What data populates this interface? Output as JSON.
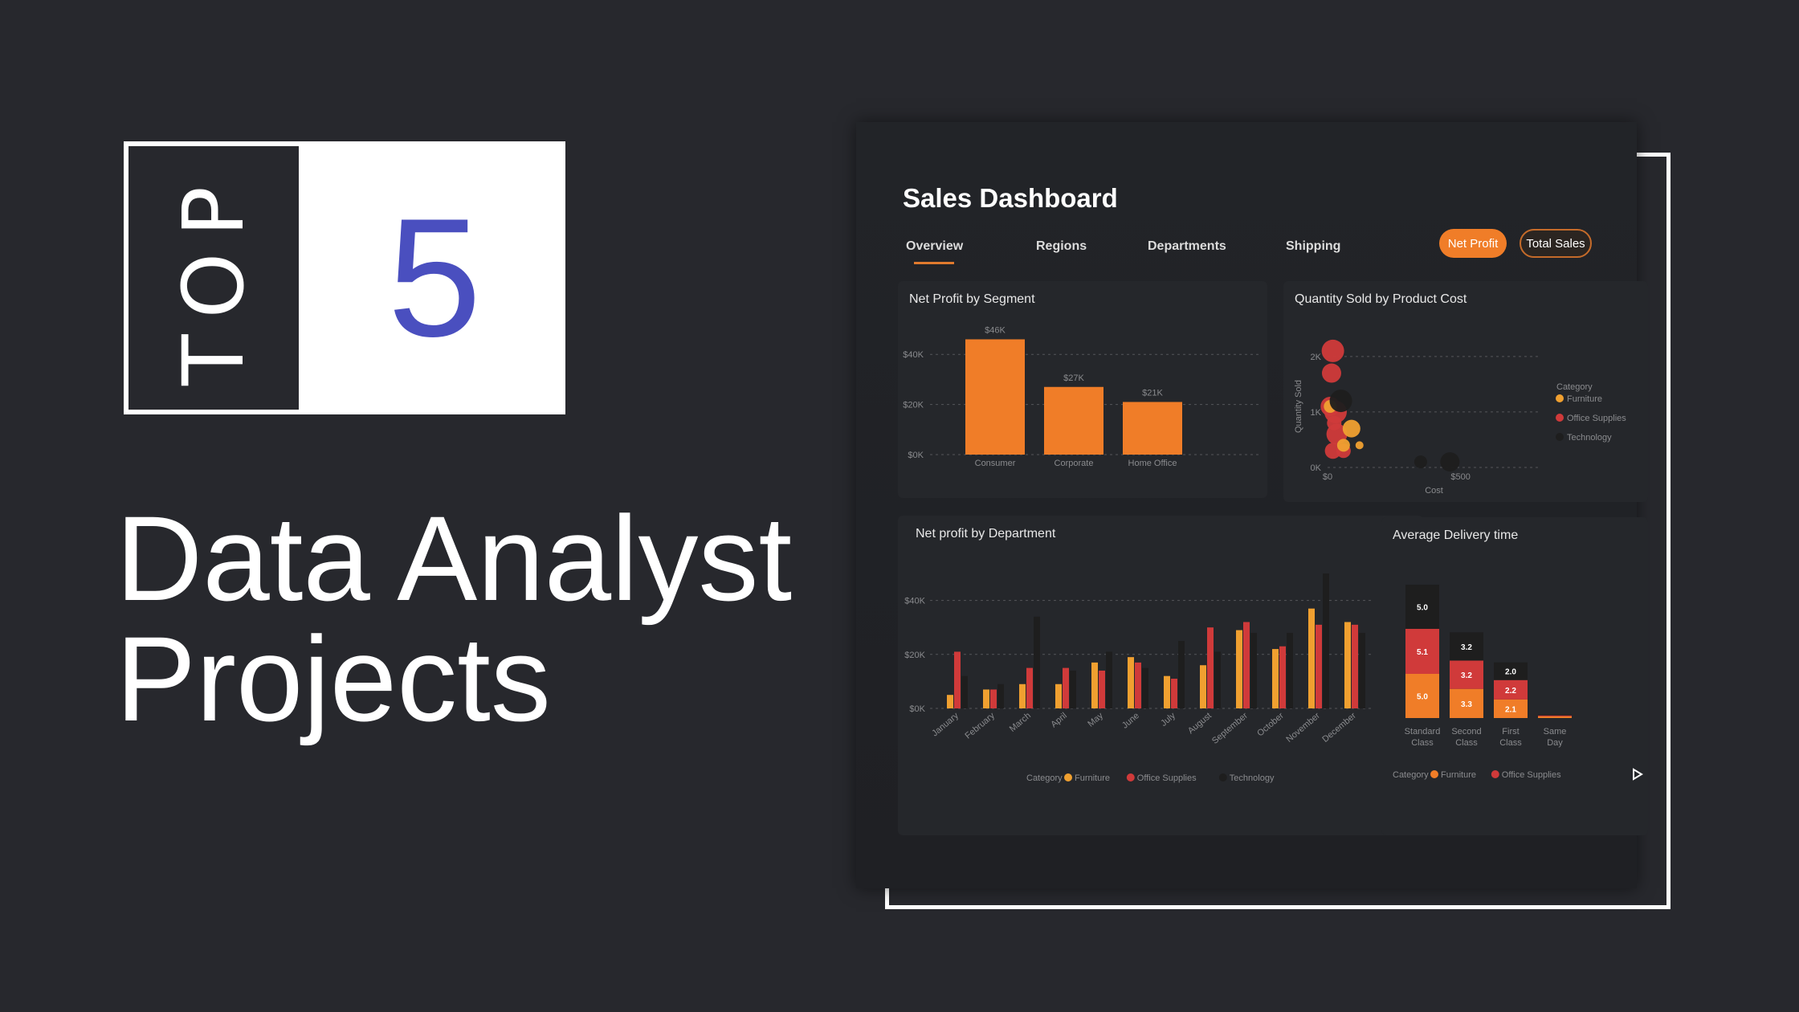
{
  "hero": {
    "top_label": "TOP",
    "number": "5",
    "headline_line1": "Data Analyst",
    "headline_line2": "Projects"
  },
  "dashboard": {
    "title": "Sales Dashboard",
    "tabs": [
      "Overview",
      "Regions",
      "Departments",
      "Shipping"
    ],
    "active_tab": "Overview",
    "toggle_net_profit": "Net Profit",
    "toggle_total_sales": "Total Sales"
  },
  "colors": {
    "accent": "#f07d28",
    "furniture": "#f0a030",
    "office_supplies": "#d03a3a",
    "technology": "#1e1e1e",
    "number": "#4a4fbf"
  },
  "chart_data": [
    {
      "type": "bar",
      "title": "Net Profit by Segment",
      "categories": [
        "Consumer",
        "Corporate",
        "Home Office"
      ],
      "values": [
        46,
        27,
        21
      ],
      "data_labels": [
        "$46K",
        "$27K",
        "$21K"
      ],
      "y_ticks": [
        "$0K",
        "$20K",
        "$40K"
      ],
      "ylim": [
        0,
        50
      ]
    },
    {
      "type": "scatter",
      "title": "Quantity Sold by Product Cost",
      "xlabel": "Cost",
      "ylabel": "Quantity Sold",
      "x_ticks": [
        "$0",
        "$500"
      ],
      "y_ticks": [
        "0K",
        "1K",
        "2K"
      ],
      "xlim": [
        0,
        800
      ],
      "ylim": [
        0,
        2.2
      ],
      "legend_title": "Category",
      "legend": [
        "Furniture",
        "Office Supplies",
        "Technology"
      ],
      "series": [
        {
          "name": "Office Supplies",
          "points": [
            [
              20,
              2.1,
              14
            ],
            [
              15,
              1.7,
              12
            ],
            [
              10,
              1.1,
              12
            ],
            [
              30,
              1.0,
              14
            ],
            [
              35,
              0.6,
              13
            ],
            [
              20,
              0.3,
              10
            ],
            [
              60,
              0.3,
              9
            ],
            [
              25,
              0.8,
              9
            ]
          ]
        },
        {
          "name": "Furniture",
          "points": [
            [
              90,
              0.7,
              11
            ],
            [
              60,
              0.4,
              8
            ],
            [
              120,
              0.4,
              5
            ],
            [
              10,
              1.1,
              8
            ]
          ]
        },
        {
          "name": "Technology",
          "points": [
            [
              460,
              0.1,
              12
            ],
            [
              350,
              0.1,
              8
            ],
            [
              50,
              1.2,
              14
            ]
          ]
        }
      ]
    },
    {
      "type": "bar",
      "title": "Net profit by Department",
      "categories": [
        "January",
        "February",
        "March",
        "April",
        "May",
        "June",
        "July",
        "August",
        "September",
        "October",
        "November",
        "December"
      ],
      "y_ticks": [
        "$0K",
        "$20K",
        "$40K"
      ],
      "ylim": [
        0,
        50
      ],
      "legend_title": "Category",
      "series": [
        {
          "name": "Furniture",
          "values": [
            5,
            7,
            9,
            9,
            17,
            19,
            12,
            16,
            29,
            22,
            37,
            32
          ]
        },
        {
          "name": "Office Supplies",
          "values": [
            21,
            7,
            15,
            15,
            14,
            17,
            11,
            30,
            32,
            23,
            31,
            31
          ]
        },
        {
          "name": "Technology",
          "values": [
            12,
            9,
            34,
            14,
            21,
            15,
            25,
            21,
            28,
            28,
            50,
            28
          ]
        }
      ]
    },
    {
      "type": "bar",
      "title": "Average Delivery time",
      "categories": [
        "Standard Class",
        "Second Class",
        "First Class",
        "Same Day"
      ],
      "category_lines": [
        [
          "Standard",
          "Class"
        ],
        [
          "Second",
          "Class"
        ],
        [
          "First",
          "Class"
        ],
        [
          "Same",
          "Day"
        ]
      ],
      "stacked": true,
      "legend_title": "Category",
      "series": [
        {
          "name": "Furniture",
          "values": [
            5.0,
            3.3,
            2.1,
            0.2
          ]
        },
        {
          "name": "Office Supplies",
          "values": [
            5.1,
            3.2,
            2.2,
            0.1
          ]
        },
        {
          "name": "Technology",
          "values": [
            5.0,
            3.2,
            2.0,
            0.1
          ]
        }
      ],
      "data_labels": [
        [
          "5.0",
          "5.1",
          "5.0"
        ],
        [
          "3.3",
          "3.2",
          "3.2"
        ],
        [
          "2.1",
          "2.2",
          "2.0"
        ],
        [
          "",
          "",
          ""
        ]
      ]
    }
  ]
}
